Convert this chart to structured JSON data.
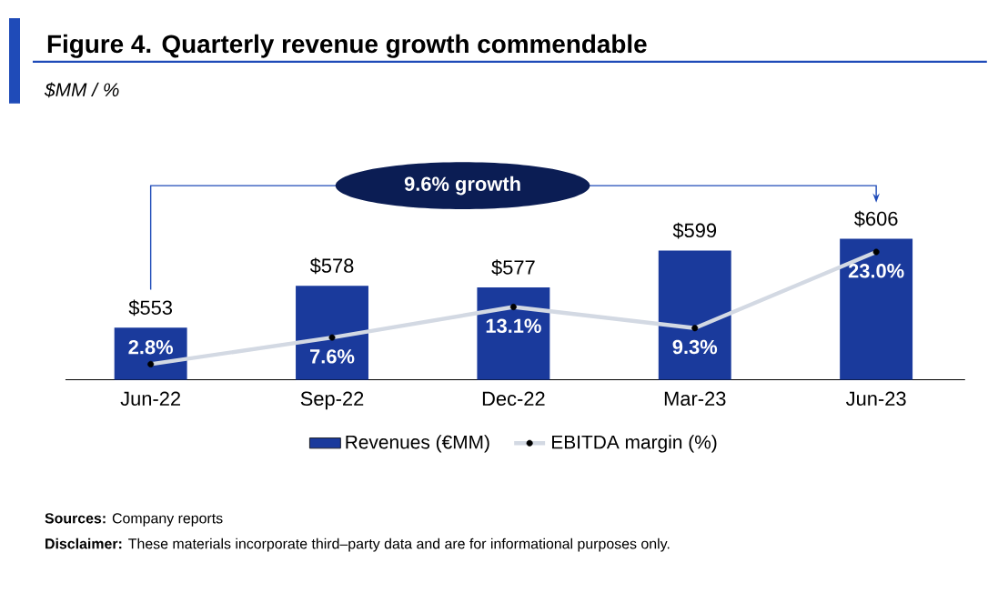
{
  "chart_data": {
    "type": "bar",
    "title": "Figure 4. Quarterly revenue growth commendable",
    "subtitle": "$MM / %",
    "categories": [
      "Jun-22",
      "Sep-22",
      "Dec-22",
      "Mar-23",
      "Jun-23"
    ],
    "series": [
      {
        "name": "Revenues (€MM)",
        "color": "#1a3a9c",
        "values": [
          553,
          578,
          577,
          599,
          606
        ],
        "value_labels": [
          "$553",
          "$578",
          "$577",
          "$599",
          "$606"
        ]
      },
      {
        "name": "EBITDA margin (%)",
        "type": "line",
        "axis": "y2",
        "color": "#d3d9e3",
        "values": [
          2.8,
          7.6,
          13.1,
          9.3,
          23.0
        ],
        "value_labels": [
          "2.8%",
          "7.6%",
          "13.1%",
          "9.3%",
          "23.0%"
        ]
      }
    ],
    "ylim": [
      522,
      640
    ],
    "marker": "circle",
    "legend": "bottom",
    "tick_labels": "x",
    "annotations": [
      "9.6% growth",
      "**Sources:** Company reports",
      "**Disclaimer:** These materials incorporate third–party data and are for informational purposes only."
    ]
  }
}
